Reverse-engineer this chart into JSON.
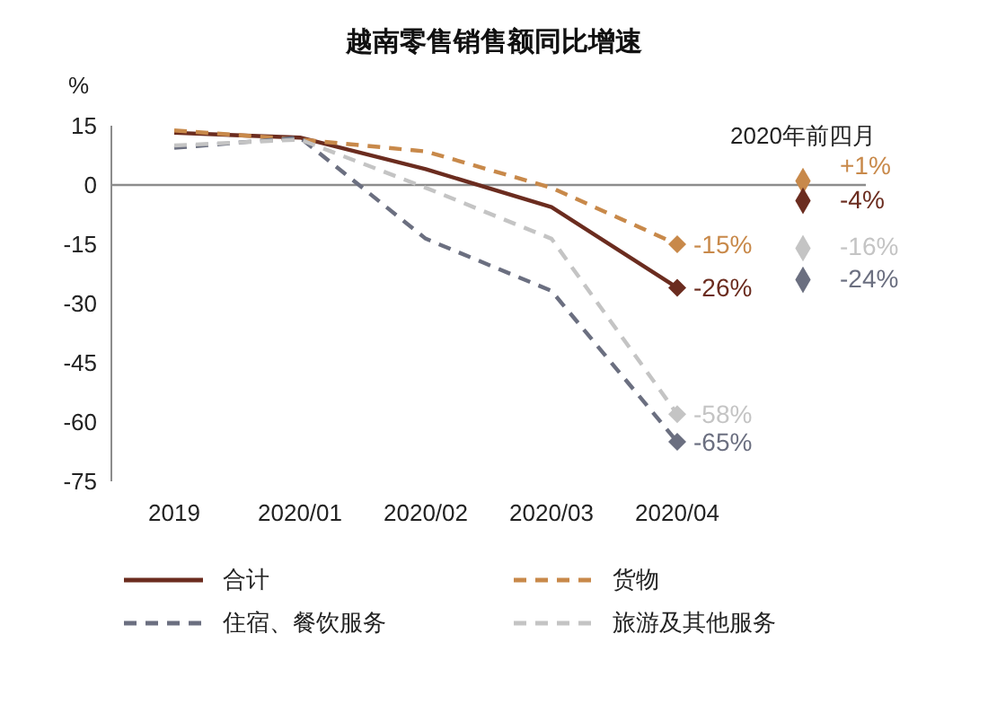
{
  "chart_data": {
    "type": "line",
    "title": "越南零售销售额同比增速",
    "ylabel": "%",
    "categories": [
      "2019",
      "2020/01",
      "2020/02",
      "2020/03",
      "2020/04",
      "2020年前四月"
    ],
    "ylim": [
      -75,
      15
    ],
    "yticks": [
      15,
      0,
      -15,
      -30,
      -45,
      -60,
      -75
    ],
    "grid": false,
    "legend": "bottom",
    "ref_lines": [
      {
        "axis": "y",
        "value": 0,
        "color": "#8c8c8c"
      }
    ],
    "series": [
      {
        "name": "合计",
        "color": "#6b2c1f",
        "line_style": "solid",
        "values": [
          13.2,
          12,
          4,
          -5.6,
          -26,
          null
        ],
        "value_labels": [
          null,
          null,
          null,
          null,
          "-26%",
          null
        ]
      },
      {
        "name": "货物",
        "color": "#c8894a",
        "line_style": "dashed",
        "values": [
          13.8,
          11.5,
          8.5,
          -0.7,
          -15,
          null
        ],
        "value_labels": [
          null,
          null,
          null,
          null,
          "-15%",
          null
        ]
      },
      {
        "name": "住宿、餐饮服务",
        "color": "#6b6f80",
        "line_style": "dashed",
        "values": [
          9.4,
          12,
          -13.6,
          -26.8,
          -65,
          null
        ],
        "value_labels": [
          null,
          null,
          null,
          null,
          "-65%",
          null
        ]
      },
      {
        "name": "旅游及其他服务",
        "color": "#c4c4c4",
        "line_style": "dashed",
        "values": [
          10,
          11.5,
          -0.7,
          -13.6,
          -58,
          null
        ],
        "value_labels": [
          null,
          null,
          null,
          null,
          "-58%",
          null
        ]
      },
      {
        "type": "scatter",
        "marker": "diamond",
        "x": [
          "2020年前四月",
          "2020年前四月",
          "2020年前四月",
          "2020年前四月"
        ],
        "values": [
          1,
          -4,
          -16,
          -24
        ],
        "colors": [
          "#c8894a",
          "#6b2c1f",
          "#c4c4c4",
          "#6b6f80"
        ],
        "value_labels": [
          "+1%",
          "-4%",
          "-16%",
          "-24%"
        ]
      }
    ]
  }
}
